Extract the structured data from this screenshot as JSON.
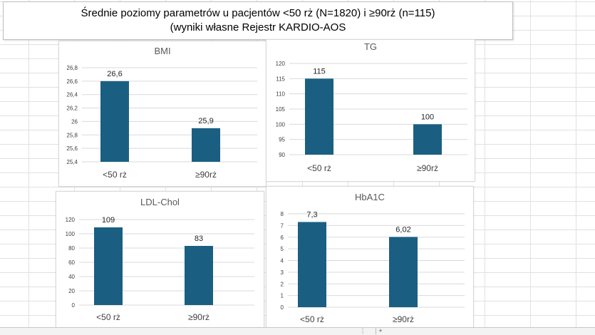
{
  "title": {
    "line1": "Średnie poziomy parametrów u pacjentów <50 rż (N=1820) i ≥90rż (n=115)",
    "line2": "(wyniki  własne Rejestr KARDIO-AOS"
  },
  "colors": {
    "bar": "#1a5f82",
    "grid": "#d9d9d9",
    "text": "#404040"
  },
  "statusbar": {
    "scroll_glyph": "⋮",
    "add_glyph": "+"
  },
  "chart_data": [
    {
      "type": "bar",
      "title": "BMI",
      "categories": [
        "<50 rż",
        "≥90rż"
      ],
      "values": [
        26.6,
        25.9
      ],
      "data_labels": [
        "26,6",
        "25,9"
      ],
      "ylim": [
        25.4,
        26.8
      ],
      "yticks": [
        "25,4",
        "25,6",
        "25,8",
        "26",
        "26,2",
        "26,4",
        "26,6",
        "26,8"
      ],
      "grid": true
    },
    {
      "type": "bar",
      "title": "TG",
      "categories": [
        "<50 rż",
        "≥90rż"
      ],
      "values": [
        115,
        100
      ],
      "data_labels": [
        "115",
        "100"
      ],
      "ylim": [
        90,
        120
      ],
      "yticks": [
        "90",
        "95",
        "100",
        "105",
        "110",
        "115",
        "120"
      ],
      "grid": true
    },
    {
      "type": "bar",
      "title": "LDL-Chol",
      "categories": [
        "<50 rż",
        "≥90rż"
      ],
      "values": [
        109,
        83
      ],
      "data_labels": [
        "109",
        "83"
      ],
      "ylim": [
        0,
        120
      ],
      "yticks": [
        "0",
        "20",
        "40",
        "60",
        "80",
        "100",
        "120"
      ],
      "grid": true
    },
    {
      "type": "bar",
      "title": "HbA1C",
      "categories": [
        "<50 rż",
        "≥90rż"
      ],
      "values": [
        7.3,
        6.02
      ],
      "data_labels": [
        "7,3",
        "6,02"
      ],
      "ylim": [
        0,
        8
      ],
      "yticks": [
        "0",
        "1",
        "2",
        "3",
        "4",
        "5",
        "6",
        "7",
        "8"
      ],
      "grid": true
    }
  ]
}
